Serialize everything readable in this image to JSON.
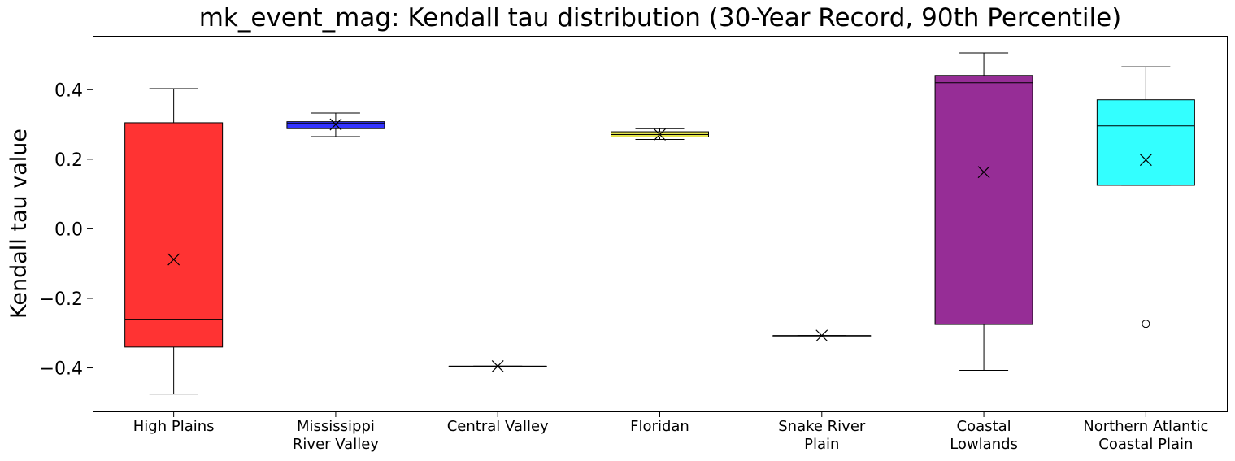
{
  "chart_data": {
    "type": "box",
    "title": "mk_event_mag: Kendall tau distribution (30-Year Record, 90th Percentile)",
    "xlabel": "",
    "ylabel": "Kendall tau value",
    "ylim": [
      -0.525,
      0.555
    ],
    "yticks": [
      -0.4,
      -0.2,
      0.0,
      0.2,
      0.4
    ],
    "ytick_labels": [
      "−0.4",
      "−0.2",
      "0.0",
      "0.2",
      "0.4"
    ],
    "grid": false,
    "categories": [
      [
        "High Plains"
      ],
      [
        "Mississippi",
        "River Valley"
      ],
      [
        "Central Valley"
      ],
      [
        "Floridan"
      ],
      [
        "Snake River",
        "Plain"
      ],
      [
        "Coastal",
        "Lowlands"
      ],
      [
        "Northern Atlantic",
        "Coastal Plain"
      ]
    ],
    "boxes": [
      {
        "color": "#ff3333",
        "whisker_low": -0.475,
        "q1": -0.34,
        "median": -0.26,
        "q3": 0.305,
        "whisker_high": 0.403,
        "mean": -0.088,
        "outliers": []
      },
      {
        "color": "#3333ff",
        "whisker_low": 0.265,
        "q1": 0.288,
        "median": 0.303,
        "q3": 0.308,
        "whisker_high": 0.333,
        "mean": 0.3,
        "outliers": []
      },
      {
        "color": "#000000",
        "whisker_low": -0.395,
        "q1": -0.395,
        "median": -0.395,
        "q3": -0.395,
        "whisker_high": -0.395,
        "mean": -0.395,
        "outliers": []
      },
      {
        "color": "#e6e64d",
        "whisker_low": 0.257,
        "q1": 0.264,
        "median": 0.271,
        "q3": 0.279,
        "whisker_high": 0.288,
        "mean": 0.271,
        "outliers": []
      },
      {
        "color": "#000000",
        "whisker_low": -0.307,
        "q1": -0.307,
        "median": -0.307,
        "q3": -0.307,
        "whisker_high": -0.307,
        "mean": -0.307,
        "outliers": []
      },
      {
        "color": "#962d96",
        "whisker_low": -0.407,
        "q1": -0.275,
        "median": 0.42,
        "q3": 0.441,
        "whisker_high": 0.506,
        "mean": 0.163,
        "outliers": []
      },
      {
        "color": "#33ffff",
        "whisker_low": 0.125,
        "q1": 0.125,
        "median": 0.296,
        "q3": 0.371,
        "whisker_high": 0.466,
        "mean": 0.198,
        "outliers": [
          -0.273
        ]
      }
    ]
  }
}
